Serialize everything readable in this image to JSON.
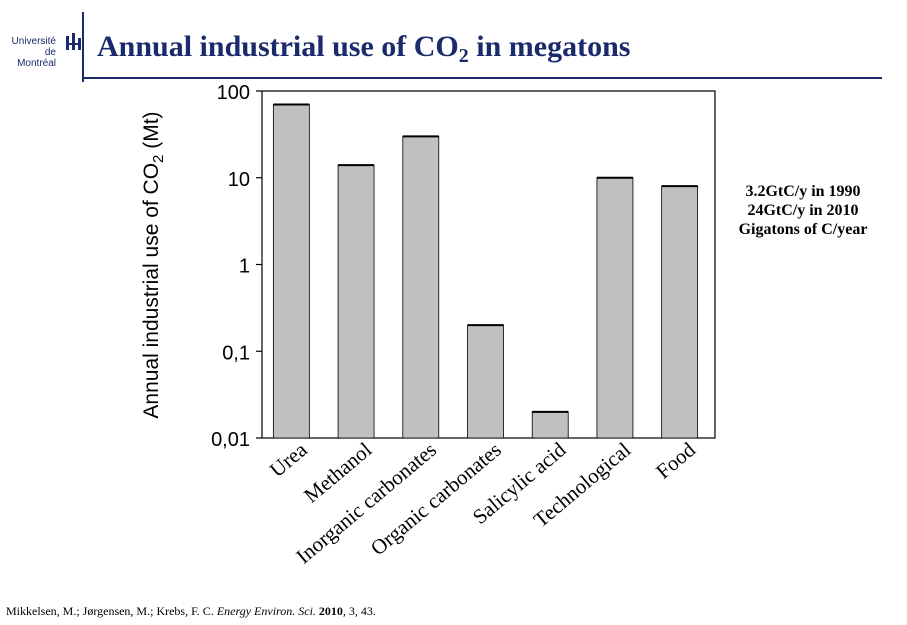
{
  "header": {
    "logo_line1": "Université",
    "logo_line2": "de Montréal",
    "title_main": "Annual industrial use of CO",
    "title_sub": "2",
    "title_end": " in megatons"
  },
  "note": {
    "lines": [
      "3.2GtC/y in 1990",
      "24GtC/y in 2010",
      "Gigatons of C/year"
    ]
  },
  "citation": {
    "authors": "Mikkelsen, M.; Jørgensen, M.; Krebs, F. C. ",
    "journal": "Energy Environ. Sci.",
    "year": " 2010",
    "rest": ", 3, 43."
  },
  "colors": {
    "bar": "#c0c0c0",
    "accent": "#1a2a6c"
  },
  "chart_data": {
    "type": "bar",
    "y_scale": "log",
    "ylabel": "Annual industrial use of CO2 (Mt)",
    "ylabel_main": "Annual industrial use of CO",
    "ylabel_sub": "2",
    "ylabel_end": " (Mt)",
    "ylim": [
      0.01,
      100
    ],
    "yticks": [
      {
        "value": 100,
        "label": "100"
      },
      {
        "value": 10,
        "label": "10"
      },
      {
        "value": 1,
        "label": "1"
      },
      {
        "value": 0.1,
        "label": "0,1"
      },
      {
        "value": 0.01,
        "label": "0,01"
      }
    ],
    "categories": [
      "Urea",
      "Methanol",
      "Inorganic carbonates",
      "Organic carbonates",
      "Salicylic acid",
      "Technological",
      "Food"
    ],
    "values": [
      70,
      14,
      30,
      0.2,
      0.02,
      10,
      8
    ]
  }
}
